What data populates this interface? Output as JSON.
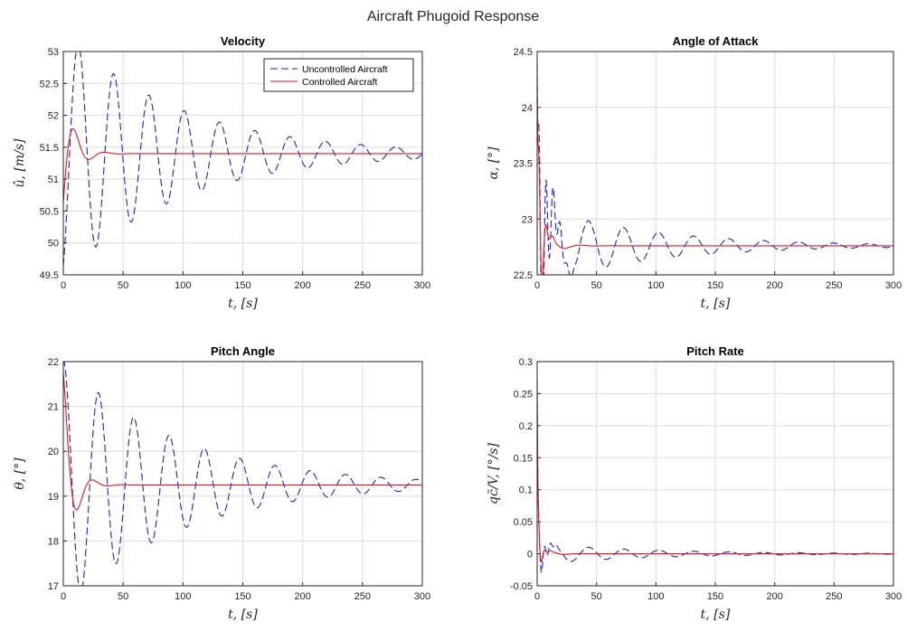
{
  "figure": {
    "title": "Aircraft Phugoid Response"
  },
  "colors": {
    "uncontrolled": "#1f1fd6",
    "controlled": "#e8161b",
    "grid": "#dcdcdc",
    "axis": "#262626"
  },
  "chart_data": [
    {
      "type": "line",
      "title": "Velocity",
      "xlabel": "t, [s]",
      "ylabel": "û, [m/s]",
      "xlim": [
        0,
        300
      ],
      "ylim": [
        49.5,
        53
      ],
      "xticks": [
        0,
        50,
        100,
        150,
        200,
        250,
        300
      ],
      "yticks": [
        49.5,
        50,
        50.5,
        51,
        51.5,
        52,
        52.5,
        53
      ],
      "ytick_labels": [
        "49.5",
        "50",
        "50.5",
        "51",
        "51.5",
        "52",
        "52.5",
        "53"
      ],
      "grid": true,
      "legend": {
        "placement": "top-right",
        "entries": [
          "Uncontrolled Aircraft",
          "Controlled Aircraft"
        ]
      },
      "series": [
        {
          "name": "Uncontrolled Aircraft",
          "style": "dashed",
          "model": {
            "ss": 51.4,
            "A": -1.95,
            "tau": 95,
            "period": 29.5,
            "phase": 0.45,
            "dy0": -0.05
          }
        },
        {
          "name": "Controlled Aircraft",
          "style": "solid",
          "model": {
            "ss": 51.4,
            "A": -1.05,
            "tau": 9,
            "period": 26,
            "phase": 0.75,
            "dy0": -0.05
          }
        }
      ]
    },
    {
      "type": "line",
      "title": "Angle of Attack",
      "xlabel": "t, [s]",
      "ylabel": "α, [°]",
      "xlim": [
        0,
        300
      ],
      "ylim": [
        22.5,
        24.5
      ],
      "xticks": [
        0,
        50,
        100,
        150,
        200,
        250,
        300
      ],
      "yticks": [
        22.5,
        23,
        23.5,
        24,
        24.5
      ],
      "ytick_labels": [
        "22.5",
        "23",
        "23.5",
        "24",
        "24.5"
      ],
      "grid": true,
      "series": [
        {
          "name": "Uncontrolled Aircraft",
          "style": "dashed",
          "model": {
            "ss": 22.76,
            "A": -0.35,
            "tau": 95,
            "period": 29.5,
            "phase": 0.2,
            "dy0": 1.63,
            "ftau": 0.9,
            "fA": 1.5,
            "fT": 6,
            "ftau2": 7
          }
        },
        {
          "name": "Controlled Aircraft",
          "style": "solid",
          "model": {
            "ss": 22.76,
            "A": -0.33,
            "tau": 9,
            "period": 26,
            "phase": 0.35,
            "dy0": 1.5,
            "ftau": 0.9,
            "fA": 1.3,
            "fT": 6,
            "ftau2": 3
          }
        }
      ]
    },
    {
      "type": "line",
      "title": "Pitch Angle",
      "xlabel": "t, [s]",
      "ylabel": "θ, [°]",
      "xlim": [
        0,
        300
      ],
      "ylim": [
        17,
        22
      ],
      "xticks": [
        0,
        50,
        100,
        150,
        200,
        250,
        300
      ],
      "yticks": [
        17,
        18,
        19,
        20,
        21,
        22
      ],
      "ytick_labels": [
        "17",
        "18",
        "19",
        "20",
        "21",
        "22"
      ],
      "grid": true,
      "series": [
        {
          "name": "Uncontrolled Aircraft",
          "style": "dashed",
          "model": {
            "ss": 19.25,
            "A": 2.8,
            "tau": 95,
            "period": 29.5,
            "phase": 0,
            "dy0": 2.75
          }
        },
        {
          "name": "Controlled Aircraft",
          "style": "solid",
          "model": {
            "ss": 19.25,
            "A": 2.5,
            "tau": 8,
            "period": 26,
            "phase": 0,
            "dy0": 2.45
          }
        }
      ]
    },
    {
      "type": "line",
      "title": "Pitch Rate",
      "xlabel": "t, [s]",
      "ylabel": "qc̄/V, [°/s]",
      "xlim": [
        0,
        300
      ],
      "ylim": [
        -0.05,
        0.3
      ],
      "xticks": [
        0,
        50,
        100,
        150,
        200,
        250,
        300
      ],
      "yticks": [
        -0.05,
        0,
        0.05,
        0.1,
        0.15,
        0.2,
        0.25,
        0.3
      ],
      "ytick_labels": [
        "-0.05",
        "0",
        "0.05",
        "0.1",
        "0.15",
        "0.2",
        "0.25",
        "0.3"
      ],
      "grid": true,
      "series": [
        {
          "name": "Uncontrolled Aircraft",
          "style": "dashed",
          "model": {
            "ss": 0.0,
            "A": -0.016,
            "tau": 95,
            "period": 29.5,
            "phase": 0.15,
            "dy0": 0.27,
            "ftau": 0.7,
            "fA": 0.045,
            "fT": 5,
            "ftau2": 5
          }
        },
        {
          "name": "Controlled Aircraft",
          "style": "solid",
          "model": {
            "ss": 0.0,
            "A": -0.015,
            "tau": 9,
            "period": 26,
            "phase": 0.3,
            "dy0": 0.27,
            "ftau": 0.7,
            "fA": 0.045,
            "fT": 5,
            "ftau2": 2.5
          }
        }
      ]
    }
  ]
}
